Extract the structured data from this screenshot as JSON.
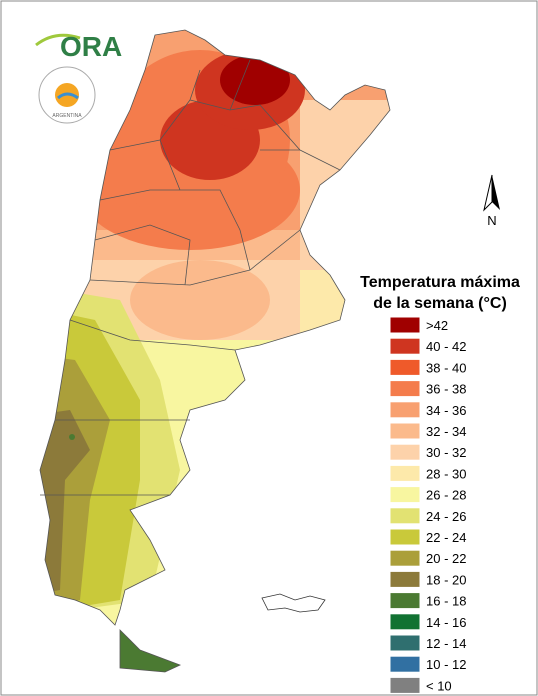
{
  "logo": {
    "name": "ORA",
    "country": "ARGENTINA"
  },
  "north": "N",
  "legend": {
    "title": [
      "Temperatura máxima",
      "de la semana (°C)"
    ],
    "entries": [
      {
        "label": ">42",
        "color": "#a00000"
      },
      {
        "label": "40 - 42",
        "color": "#cf3520"
      },
      {
        "label": "38 - 40",
        "color": "#ef5a2a"
      },
      {
        "label": "36 - 38",
        "color": "#f47c4c"
      },
      {
        "label": "34 - 36",
        "color": "#f8a070"
      },
      {
        "label": "32 - 34",
        "color": "#fbba8c"
      },
      {
        "label": "30 - 32",
        "color": "#fdd2aa"
      },
      {
        "label": "28 - 30",
        "color": "#fde9aa"
      },
      {
        "label": "26 - 28",
        "color": "#f8f6a0"
      },
      {
        "label": "24 - 26",
        "color": "#e2e272"
      },
      {
        "label": "22 - 24",
        "color": "#c9c93a"
      },
      {
        "label": "20 - 22",
        "color": "#ab9f3a"
      },
      {
        "label": "18 - 20",
        "color": "#8c7a3a"
      },
      {
        "label": "16 - 18",
        "color": "#4b7a32"
      },
      {
        "label": "14 - 16",
        "color": "#117232"
      },
      {
        "label": "12 - 14",
        "color": "#2f6f6f"
      },
      {
        "label": "10 - 12",
        "color": "#3170a2"
      },
      {
        "label": "< 10",
        "color": "#808080"
      }
    ]
  }
}
